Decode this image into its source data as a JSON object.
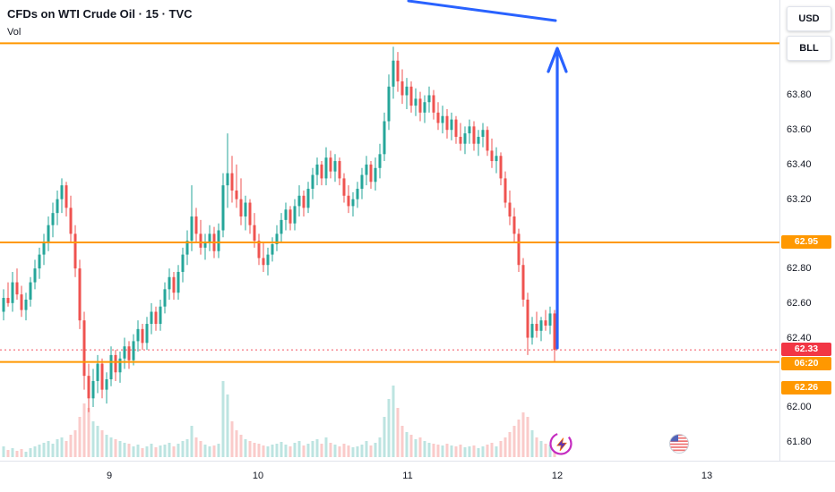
{
  "header": {
    "title": "CFDs on WTI Crude Oil · 15 · TVC",
    "indicator_label": "Vol"
  },
  "axis_buttons": {
    "currency_label": "USD",
    "unit_label": "BLL"
  },
  "price_axis": {
    "ticks": [
      {
        "label": "63.80",
        "price": 63.8
      },
      {
        "label": "63.60",
        "price": 63.6
      },
      {
        "label": "63.40",
        "price": 63.4
      },
      {
        "label": "63.20",
        "price": 63.2
      },
      {
        "label": "62.80",
        "price": 62.8
      },
      {
        "label": "62.60",
        "price": 62.6
      },
      {
        "label": "62.40",
        "price": 62.4
      },
      {
        "label": "62.00",
        "price": 62.0
      },
      {
        "label": "61.80",
        "price": 61.8
      }
    ],
    "badges": {
      "level_mid": {
        "label": "62.95",
        "price": 62.95,
        "color": "#ff9800"
      },
      "current_price": {
        "label": "62.33",
        "price": 62.33,
        "color": "#f23645"
      },
      "countdown": {
        "label": "06:20",
        "color": "#ff9800"
      },
      "level_low": {
        "label": "62.26",
        "price": 62.26,
        "color": "#ff9800"
      }
    }
  },
  "time_axis": {
    "ticks": [
      {
        "label": "9",
        "x": 122
      },
      {
        "label": "10",
        "x": 288
      },
      {
        "label": "11",
        "x": 455
      },
      {
        "label": "12",
        "x": 622
      },
      {
        "label": "13",
        "x": 789
      }
    ]
  },
  "chart_data": {
    "type": "candlestick",
    "title": "CFDs on WTI Crude Oil · 15 · TVC",
    "symbol": "WTI Crude Oil CFD",
    "interval_minutes": 15,
    "exchange": "TVC",
    "ylim": [
      61.69,
      64.35
    ],
    "x_start": 4,
    "x_step": 5,
    "grid": false,
    "horizontal_levels": [
      64.1,
      62.95,
      62.26
    ],
    "current_price": 62.33,
    "colors": {
      "up": "#26a69a",
      "down": "#ef5350",
      "vol_up": "rgba(38,166,154,0.3)",
      "vol_down": "rgba(239,83,80,0.3)",
      "level": "#ff9800",
      "current": "#f23645",
      "drawing": "#2962ff"
    },
    "annotations": {
      "arrow": {
        "x": 622,
        "y_from": 389,
        "y_tip": 54
      },
      "trendline": {
        "x1": 456,
        "y1": 1,
        "x2": 620,
        "y2": 23
      }
    },
    "candles": [
      [
        62.55,
        62.68,
        62.5,
        62.63
      ],
      [
        62.63,
        62.72,
        62.58,
        62.6
      ],
      [
        62.6,
        62.78,
        62.55,
        62.72
      ],
      [
        62.72,
        62.8,
        62.62,
        62.65
      ],
      [
        62.65,
        62.7,
        62.52,
        62.56
      ],
      [
        62.56,
        62.66,
        62.5,
        62.62
      ],
      [
        62.62,
        62.75,
        62.58,
        62.72
      ],
      [
        62.72,
        62.85,
        62.68,
        62.8
      ],
      [
        62.8,
        62.92,
        62.74,
        62.88
      ],
      [
        62.88,
        63.0,
        62.82,
        62.95
      ],
      [
        62.95,
        63.1,
        62.9,
        63.05
      ],
      [
        63.05,
        63.18,
        62.98,
        63.12
      ],
      [
        63.12,
        63.25,
        63.05,
        63.2
      ],
      [
        63.2,
        63.32,
        63.12,
        63.28
      ],
      [
        63.28,
        63.3,
        63.1,
        63.15
      ],
      [
        63.15,
        63.22,
        62.95,
        63.0
      ],
      [
        63.0,
        63.05,
        62.75,
        62.8
      ],
      [
        62.8,
        62.85,
        62.45,
        62.5
      ],
      [
        62.5,
        62.55,
        62.1,
        62.18
      ],
      [
        62.18,
        62.25,
        61.97,
        62.05
      ],
      [
        62.05,
        62.22,
        62.0,
        62.15
      ],
      [
        62.15,
        62.3,
        62.08,
        62.25
      ],
      [
        62.25,
        62.28,
        62.05,
        62.1
      ],
      [
        62.1,
        62.2,
        62.02,
        62.16
      ],
      [
        62.16,
        62.35,
        62.12,
        62.3
      ],
      [
        62.3,
        62.33,
        62.15,
        62.2
      ],
      [
        62.2,
        62.32,
        62.14,
        62.28
      ],
      [
        62.28,
        62.4,
        62.22,
        62.35
      ],
      [
        62.35,
        62.38,
        62.22,
        62.27
      ],
      [
        62.27,
        62.42,
        62.24,
        62.38
      ],
      [
        62.38,
        62.5,
        62.32,
        62.45
      ],
      [
        62.45,
        62.48,
        62.33,
        62.37
      ],
      [
        62.37,
        62.52,
        62.33,
        62.48
      ],
      [
        62.48,
        62.6,
        62.42,
        62.55
      ],
      [
        62.55,
        62.58,
        62.44,
        62.48
      ],
      [
        62.48,
        62.62,
        62.44,
        62.58
      ],
      [
        62.58,
        62.72,
        62.54,
        62.68
      ],
      [
        62.68,
        62.8,
        62.62,
        62.75
      ],
      [
        62.75,
        62.78,
        62.62,
        62.66
      ],
      [
        62.66,
        62.82,
        62.62,
        62.78
      ],
      [
        62.78,
        62.92,
        62.72,
        62.88
      ],
      [
        62.88,
        63.02,
        62.82,
        62.96
      ],
      [
        62.96,
        63.28,
        62.9,
        63.1
      ],
      [
        63.1,
        63.15,
        62.95,
        63.0
      ],
      [
        63.0,
        63.08,
        62.88,
        62.92
      ],
      [
        62.92,
        63.0,
        62.85,
        62.95
      ],
      [
        62.95,
        63.05,
        62.9,
        63.0
      ],
      [
        63.0,
        63.04,
        62.86,
        62.9
      ],
      [
        62.9,
        63.06,
        62.86,
        63.02
      ],
      [
        63.02,
        63.35,
        62.98,
        63.28
      ],
      [
        63.28,
        63.58,
        63.15,
        63.35
      ],
      [
        63.35,
        63.45,
        63.18,
        63.25
      ],
      [
        63.25,
        63.4,
        63.15,
        63.2
      ],
      [
        63.2,
        63.32,
        63.05,
        63.1
      ],
      [
        63.1,
        63.22,
        63.02,
        63.18
      ],
      [
        63.18,
        63.2,
        63.0,
        63.05
      ],
      [
        63.05,
        63.12,
        62.92,
        62.96
      ],
      [
        62.96,
        63.0,
        62.82,
        62.86
      ],
      [
        62.86,
        62.95,
        62.78,
        62.82
      ],
      [
        62.82,
        62.92,
        62.76,
        62.88
      ],
      [
        62.88,
        62.98,
        62.84,
        62.94
      ],
      [
        62.94,
        63.05,
        62.9,
        63.0
      ],
      [
        63.0,
        63.12,
        62.95,
        63.08
      ],
      [
        63.08,
        63.18,
        63.02,
        63.14
      ],
      [
        63.14,
        63.16,
        63.02,
        63.06
      ],
      [
        63.06,
        63.2,
        63.02,
        63.16
      ],
      [
        63.16,
        63.28,
        63.1,
        63.22
      ],
      [
        63.22,
        63.25,
        63.1,
        63.15
      ],
      [
        63.15,
        63.3,
        63.12,
        63.26
      ],
      [
        63.26,
        63.38,
        63.2,
        63.34
      ],
      [
        63.34,
        63.44,
        63.28,
        63.4
      ],
      [
        63.4,
        63.42,
        63.28,
        63.32
      ],
      [
        63.32,
        63.5,
        63.28,
        63.44
      ],
      [
        63.44,
        63.48,
        63.32,
        63.36
      ],
      [
        63.36,
        63.46,
        63.3,
        63.42
      ],
      [
        63.42,
        63.44,
        63.28,
        63.32
      ],
      [
        63.32,
        63.35,
        63.18,
        63.22
      ],
      [
        63.22,
        63.28,
        63.12,
        63.16
      ],
      [
        63.16,
        63.24,
        63.1,
        63.2
      ],
      [
        63.2,
        63.3,
        63.15,
        63.26
      ],
      [
        63.26,
        63.38,
        63.2,
        63.34
      ],
      [
        63.34,
        63.45,
        63.28,
        63.4
      ],
      [
        63.4,
        63.42,
        63.26,
        63.3
      ],
      [
        63.3,
        63.44,
        63.25,
        63.38
      ],
      [
        63.38,
        63.52,
        63.32,
        63.46
      ],
      [
        63.46,
        63.7,
        63.42,
        63.65
      ],
      [
        63.65,
        63.92,
        63.6,
        63.85
      ],
      [
        63.85,
        64.08,
        63.78,
        64.0
      ],
      [
        64.0,
        64.05,
        63.82,
        63.88
      ],
      [
        63.88,
        63.95,
        63.75,
        63.8
      ],
      [
        63.8,
        63.9,
        63.72,
        63.85
      ],
      [
        63.85,
        63.88,
        63.7,
        63.74
      ],
      [
        63.74,
        63.84,
        63.68,
        63.78
      ],
      [
        63.78,
        63.82,
        63.65,
        63.7
      ],
      [
        63.7,
        63.8,
        63.64,
        63.76
      ],
      [
        63.76,
        63.85,
        63.7,
        63.8
      ],
      [
        63.8,
        63.83,
        63.66,
        63.7
      ],
      [
        63.7,
        63.76,
        63.6,
        63.64
      ],
      [
        63.64,
        63.74,
        63.58,
        63.68
      ],
      [
        63.68,
        63.72,
        63.55,
        63.6
      ],
      [
        63.6,
        63.7,
        63.54,
        63.66
      ],
      [
        63.66,
        63.68,
        63.52,
        63.56
      ],
      [
        63.56,
        63.64,
        63.48,
        63.52
      ],
      [
        63.52,
        63.62,
        63.46,
        63.58
      ],
      [
        63.58,
        63.66,
        63.52,
        63.62
      ],
      [
        63.62,
        63.65,
        63.48,
        63.52
      ],
      [
        63.52,
        63.6,
        63.45,
        63.56
      ],
      [
        63.56,
        63.64,
        63.5,
        63.6
      ],
      [
        63.6,
        63.62,
        63.45,
        63.48
      ],
      [
        63.48,
        63.55,
        63.38,
        63.42
      ],
      [
        63.42,
        63.5,
        63.35,
        63.45
      ],
      [
        63.45,
        63.47,
        63.28,
        63.32
      ],
      [
        63.32,
        63.36,
        63.15,
        63.18
      ],
      [
        63.18,
        63.25,
        63.05,
        63.1
      ],
      [
        63.1,
        63.15,
        62.95,
        63.0
      ],
      [
        63.0,
        63.03,
        62.78,
        62.82
      ],
      [
        62.82,
        62.86,
        62.58,
        62.62
      ],
      [
        62.62,
        62.66,
        62.3,
        62.4
      ],
      [
        62.4,
        62.52,
        62.36,
        62.48
      ],
      [
        62.48,
        62.55,
        62.4,
        62.44
      ],
      [
        62.44,
        62.52,
        62.38,
        62.5
      ],
      [
        62.5,
        62.56,
        62.44,
        62.47
      ],
      [
        62.47,
        62.58,
        62.42,
        62.54
      ],
      [
        62.54,
        62.56,
        62.26,
        62.33
      ]
    ],
    "volumes": [
      12,
      8,
      10,
      7,
      9,
      6,
      10,
      12,
      14,
      16,
      18,
      15,
      20,
      22,
      18,
      25,
      30,
      45,
      60,
      55,
      40,
      35,
      30,
      25,
      22,
      20,
      18,
      16,
      15,
      12,
      14,
      10,
      12,
      15,
      11,
      13,
      14,
      16,
      12,
      15,
      18,
      20,
      35,
      22,
      18,
      14,
      12,
      13,
      15,
      85,
      70,
      40,
      30,
      25,
      20,
      18,
      16,
      15,
      13,
      12,
      14,
      15,
      17,
      14,
      12,
      16,
      18,
      13,
      15,
      18,
      20,
      15,
      22,
      16,
      14,
      12,
      15,
      13,
      11,
      12,
      14,
      18,
      13,
      16,
      22,
      45,
      65,
      80,
      55,
      35,
      28,
      25,
      20,
      22,
      18,
      16,
      15,
      14,
      13,
      15,
      13,
      12,
      14,
      11,
      12,
      13,
      10,
      12,
      14,
      16,
      12,
      18,
      22,
      28,
      35,
      42,
      50,
      45,
      30,
      22,
      18,
      15,
      14,
      20
    ]
  }
}
